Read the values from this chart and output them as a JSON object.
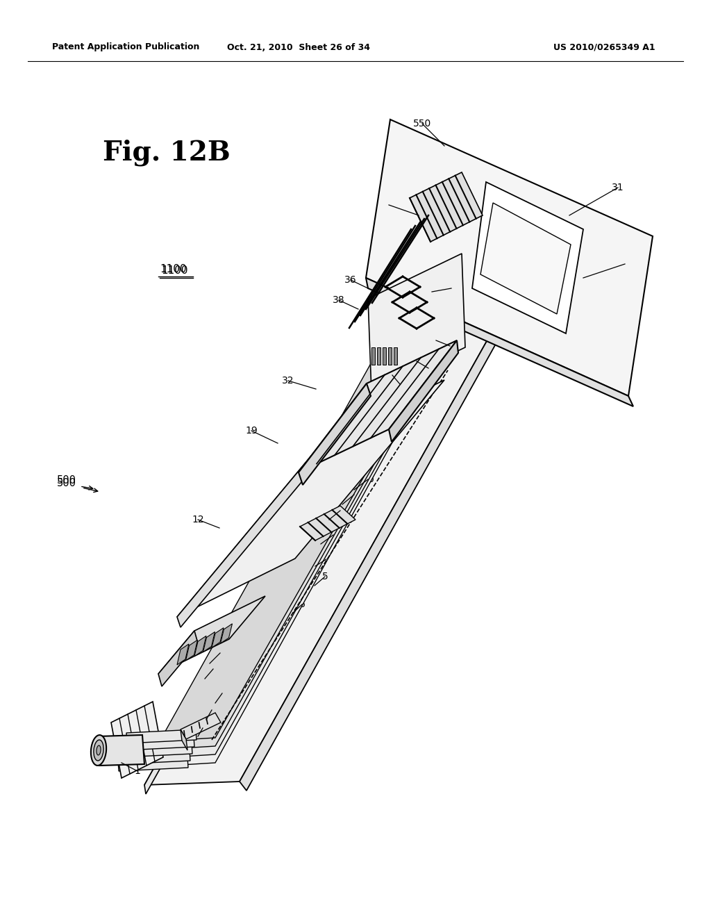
{
  "header_left": "Patent Application Publication",
  "header_mid": "Oct. 21, 2010  Sheet 26 of 34",
  "header_right": "US 2010/0265349 A1",
  "fig_label": "Fig. 12B",
  "background": "#ffffff",
  "line_color": "#000000"
}
